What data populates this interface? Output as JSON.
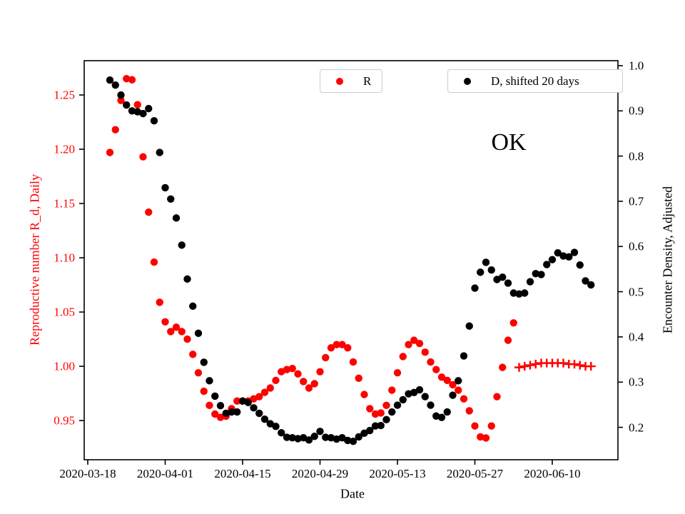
{
  "chart_data": {
    "type": "scatter",
    "title": "",
    "annotation": "OK",
    "grid": false,
    "x_axis": {
      "label": "Date",
      "tick_labels": [
        "2020-03-18",
        "2020-04-01",
        "2020-04-15",
        "2020-04-29",
        "2020-05-13",
        "2020-05-27",
        "2020-06-10"
      ],
      "range": [
        "2020-03-17",
        "2020-06-21"
      ]
    },
    "y_left": {
      "label": "Reproductive number R_d, Daily",
      "color": "#ff0000",
      "ticks": [
        0.95,
        1.0,
        1.05,
        1.1,
        1.15,
        1.2,
        1.25
      ],
      "tick_labels": [
        "0.95",
        "1.00",
        "1.05",
        "1.10",
        "1.15",
        "1.20",
        "1.25"
      ],
      "lim": [
        0.9139,
        1.2816
      ]
    },
    "y_right": {
      "label": "Encounter Density, Adjusted",
      "color": "#000000",
      "ticks": [
        0.2,
        0.3,
        0.4,
        0.5,
        0.6,
        0.7,
        0.8,
        0.9,
        1.0
      ],
      "tick_labels": [
        "0.2",
        "0.3",
        "0.4",
        "0.5",
        "0.6",
        "0.7",
        "0.8",
        "0.9",
        "1.0"
      ],
      "lim": [
        0.1283,
        1.011
      ]
    },
    "legend": [
      {
        "label": "R",
        "color": "#ff0000",
        "marker": "circle",
        "position": "upper-left-box"
      },
      {
        "label": "D, shifted 20 days",
        "color": "#000000",
        "marker": "circle",
        "position": "upper-right-box"
      }
    ],
    "series": [
      {
        "name": "R",
        "axis": "left",
        "marker": "circle",
        "color": "#ff0000",
        "start_date": "2020-03-22",
        "step_days": 1,
        "values": [
          1.197,
          1.218,
          1.245,
          1.265,
          1.264,
          1.241,
          1.193,
          1.142,
          1.096,
          1.059,
          1.041,
          1.032,
          1.036,
          1.032,
          1.025,
          1.011,
          0.994,
          0.977,
          0.964,
          0.956,
          0.953,
          0.954,
          0.961,
          0.968,
          0.968,
          0.968,
          0.97,
          0.972,
          0.976,
          0.98,
          0.987,
          0.995,
          0.997,
          0.998,
          0.993,
          0.986,
          0.98,
          0.984,
          0.995,
          1.008,
          1.017,
          1.02,
          1.02,
          1.017,
          1.004,
          0.989,
          0.974,
          0.961,
          0.956,
          0.957,
          0.964,
          0.978,
          0.994,
          1.009,
          1.02,
          1.024,
          1.021,
          1.013,
          1.004,
          0.997,
          0.99,
          0.987,
          0.983,
          0.978,
          0.97,
          0.959,
          0.945,
          0.935,
          0.934,
          0.945,
          0.972,
          0.999,
          1.024,
          1.04
        ]
      },
      {
        "name": "D, shifted 20 days",
        "axis": "right",
        "marker": "circle",
        "color": "#000000",
        "start_date": "2020-03-22",
        "step_days": 1,
        "values": [
          0.968,
          0.957,
          0.935,
          0.913,
          0.9,
          0.898,
          0.894,
          0.905,
          0.878,
          0.808,
          0.73,
          0.705,
          0.663,
          0.603,
          0.528,
          0.468,
          0.408,
          0.344,
          0.303,
          0.269,
          0.248,
          0.231,
          0.234,
          0.234,
          0.258,
          0.255,
          0.243,
          0.231,
          0.218,
          0.208,
          0.202,
          0.188,
          0.178,
          0.177,
          0.175,
          0.177,
          0.172,
          0.18,
          0.191,
          0.178,
          0.177,
          0.174,
          0.177,
          0.171,
          0.169,
          0.179,
          0.187,
          0.193,
          0.203,
          0.204,
          0.217,
          0.234,
          0.249,
          0.261,
          0.274,
          0.277,
          0.283,
          0.268,
          0.249,
          0.225,
          0.222,
          0.234,
          0.271,
          0.303,
          0.358,
          0.424,
          0.508,
          0.543,
          0.565,
          0.548,
          0.527,
          0.532,
          0.519,
          0.497,
          0.495,
          0.497,
          0.522,
          0.54,
          0.538,
          0.56,
          0.571,
          0.586,
          0.579,
          0.577,
          0.587,
          0.559,
          0.524,
          0.515
        ]
      },
      {
        "name": "R forecast markers",
        "axis": "left",
        "marker": "plus_errorbar",
        "color": "#ff0000",
        "start_date": "2020-06-04",
        "step_days": 1,
        "yerr": 0.004,
        "values": [
          0.999,
          1.0,
          1.001,
          1.002,
          1.003,
          1.003,
          1.003,
          1.003,
          1.003,
          1.002,
          1.002,
          1.001,
          1.0,
          1.0
        ]
      }
    ]
  }
}
